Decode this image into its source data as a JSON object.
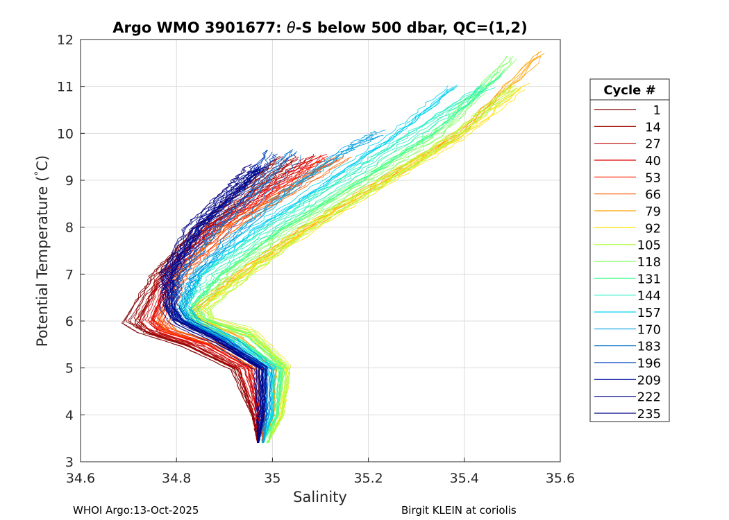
{
  "chart_data": {
    "type": "line",
    "title_prefix": "Argo WMO 3901677: ",
    "title_theta": "θ",
    "title_suffix": "-S below 500 dbar,  QC=(1,2)",
    "xlabel": "Salinity",
    "ylabel_text": "Potential Temperature (",
    "ylabel_degree": "°",
    "ylabel_unit": "C)",
    "xlim": [
      34.6,
      35.6
    ],
    "ylim": [
      3,
      12
    ],
    "xticks": [
      "34.6",
      "34.8",
      "35",
      "35.2",
      "35.4",
      "35.6"
    ],
    "yticks": [
      "3",
      "4",
      "5",
      "6",
      "7",
      "8",
      "9",
      "10",
      "11",
      "12"
    ],
    "grid": true,
    "legend_title": "Cycle #",
    "legend_placement": "right",
    "legend_entries": [
      "1",
      "14",
      "27",
      "40",
      "53",
      "66",
      "79",
      "92",
      "105",
      "118",
      "131",
      "144",
      "157",
      "170",
      "183",
      "196",
      "209",
      "222",
      "235"
    ],
    "legend_colors": [
      "#800000",
      "#a00000",
      "#c00000",
      "#e00000",
      "#ff2000",
      "#ff6000",
      "#ffa000",
      "#ffe000",
      "#b0ff40",
      "#80ff60",
      "#40ff90",
      "#20f0c0",
      "#00d0f0",
      "#00a0e0",
      "#0070d0",
      "#0040c0",
      "#0010a0",
      "#000890",
      "#000080"
    ],
    "series": [
      {
        "name": "1",
        "color": "#800000",
        "s": [
          34.97,
          34.96,
          34.92,
          34.82,
          34.73,
          34.7,
          34.76,
          34.85,
          34.94,
          35.02
        ],
        "t": [
          3.4,
          4.0,
          5.0,
          5.5,
          5.8,
          6.0,
          7.0,
          8.0,
          8.8,
          9.5
        ]
      },
      {
        "name": "14",
        "color": "#a00000",
        "s": [
          34.97,
          34.96,
          34.93,
          34.83,
          34.74,
          34.72,
          34.77,
          34.86,
          34.96,
          35.05
        ],
        "t": [
          3.4,
          4.0,
          5.0,
          5.5,
          5.8,
          6.0,
          7.0,
          8.0,
          8.8,
          9.5
        ]
      },
      {
        "name": "27",
        "color": "#c00000",
        "s": [
          34.97,
          34.97,
          34.94,
          34.85,
          34.76,
          34.74,
          34.78,
          34.87,
          34.98,
          35.08
        ],
        "t": [
          3.4,
          4.0,
          5.0,
          5.5,
          5.8,
          6.0,
          7.0,
          8.0,
          8.8,
          9.5
        ]
      },
      {
        "name": "40",
        "color": "#e00000",
        "s": [
          34.97,
          34.97,
          34.95,
          34.86,
          34.77,
          34.75,
          34.79,
          34.88,
          35.0,
          35.1
        ],
        "t": [
          3.4,
          4.0,
          5.0,
          5.5,
          5.8,
          6.0,
          7.0,
          8.0,
          8.8,
          9.5
        ]
      },
      {
        "name": "53",
        "color": "#ff2000",
        "s": [
          34.98,
          34.98,
          34.96,
          34.88,
          34.78,
          34.76,
          34.8,
          34.9,
          35.02,
          35.12
        ],
        "t": [
          3.4,
          4.0,
          5.0,
          5.5,
          5.8,
          6.0,
          7.0,
          8.0,
          8.8,
          9.5
        ]
      },
      {
        "name": "66",
        "color": "#ff6000",
        "s": [
          34.98,
          34.98,
          34.97,
          34.89,
          34.79,
          34.77,
          34.81,
          34.91,
          35.04,
          35.15
        ],
        "t": [
          3.4,
          4.0,
          5.0,
          5.5,
          5.8,
          6.0,
          7.0,
          8.0,
          8.8,
          9.5
        ]
      },
      {
        "name": "79",
        "color": "#ffa000",
        "s": [
          34.98,
          35.0,
          35.0,
          34.93,
          34.84,
          34.82,
          34.92,
          35.06,
          35.22,
          35.38,
          35.55
        ],
        "t": [
          3.4,
          4.0,
          5.0,
          5.6,
          6.0,
          6.2,
          7.0,
          8.0,
          9.0,
          10.0,
          11.7
        ]
      },
      {
        "name": "92",
        "color": "#ffe000",
        "s": [
          34.99,
          35.02,
          35.03,
          34.96,
          34.86,
          34.84,
          34.94,
          35.08,
          35.24,
          35.4,
          35.52
        ],
        "t": [
          3.4,
          4.0,
          5.0,
          5.7,
          6.0,
          6.2,
          7.0,
          8.0,
          9.0,
          10.0,
          11.0
        ]
      },
      {
        "name": "105",
        "color": "#b0ff40",
        "s": [
          34.99,
          35.02,
          35.03,
          34.95,
          34.87,
          34.86,
          34.94,
          35.07,
          35.23,
          35.38,
          35.5
        ],
        "t": [
          3.4,
          4.0,
          5.0,
          5.8,
          6.0,
          6.3,
          7.0,
          8.0,
          9.0,
          10.0,
          11.0
        ]
      },
      {
        "name": "118",
        "color": "#80ff60",
        "s": [
          34.99,
          35.01,
          35.02,
          34.95,
          34.86,
          34.84,
          34.91,
          35.04,
          35.2,
          35.35,
          35.5
        ],
        "t": [
          3.4,
          4.0,
          5.0,
          5.7,
          6.0,
          6.3,
          7.0,
          8.0,
          9.0,
          10.0,
          11.6
        ]
      },
      {
        "name": "131",
        "color": "#40ff90",
        "s": [
          34.98,
          35.01,
          35.02,
          34.94,
          34.85,
          34.83,
          34.89,
          35.02,
          35.18,
          35.33,
          35.48
        ],
        "t": [
          3.4,
          4.0,
          5.0,
          5.6,
          6.0,
          6.3,
          7.0,
          8.0,
          9.0,
          10.0,
          11.3
        ]
      },
      {
        "name": "144",
        "color": "#20f0c0",
        "s": [
          34.98,
          35.0,
          35.01,
          34.93,
          34.84,
          34.82,
          34.87,
          35.0,
          35.15,
          35.3,
          35.45
        ],
        "t": [
          3.4,
          4.0,
          5.0,
          5.6,
          6.0,
          6.3,
          7.0,
          8.0,
          9.0,
          10.0,
          11.0
        ]
      },
      {
        "name": "157",
        "color": "#00d0f0",
        "s": [
          34.98,
          35.0,
          35.0,
          34.92,
          34.84,
          34.82,
          34.85,
          34.97,
          35.12,
          35.26,
          35.38
        ],
        "t": [
          3.4,
          4.0,
          5.0,
          5.6,
          6.0,
          6.3,
          7.0,
          8.0,
          9.0,
          10.0,
          11.0
        ]
      },
      {
        "name": "170",
        "color": "#00a0e0",
        "s": [
          34.98,
          34.99,
          34.99,
          34.91,
          34.83,
          34.81,
          34.84,
          34.94,
          35.06,
          35.16,
          35.22
        ],
        "t": [
          3.4,
          4.0,
          5.0,
          5.6,
          6.0,
          6.3,
          7.0,
          8.0,
          9.0,
          9.7,
          10.0
        ]
      },
      {
        "name": "183",
        "color": "#0070d0",
        "s": [
          34.97,
          34.99,
          34.99,
          34.9,
          34.82,
          34.8,
          34.82,
          34.9,
          34.98,
          35.05
        ],
        "t": [
          3.4,
          4.0,
          5.0,
          5.6,
          6.0,
          6.3,
          7.0,
          8.0,
          8.8,
          9.6
        ]
      },
      {
        "name": "196",
        "color": "#0040c0",
        "s": [
          34.97,
          34.98,
          34.98,
          34.89,
          34.81,
          34.79,
          34.8,
          34.86,
          34.95,
          35.0
        ],
        "t": [
          3.4,
          4.0,
          5.0,
          5.6,
          6.0,
          6.3,
          7.0,
          8.0,
          8.8,
          9.6
        ]
      },
      {
        "name": "209",
        "color": "#0010a0",
        "s": [
          34.97,
          34.98,
          34.98,
          34.89,
          34.81,
          34.79,
          34.79,
          34.85,
          34.93,
          34.98
        ],
        "t": [
          3.4,
          4.0,
          5.0,
          5.6,
          6.0,
          6.3,
          7.0,
          8.0,
          8.8,
          9.3
        ]
      },
      {
        "name": "222",
        "color": "#000890",
        "s": [
          34.97,
          34.98,
          34.98,
          34.88,
          34.8,
          34.78,
          34.78,
          34.84,
          34.92,
          34.97
        ],
        "t": [
          3.4,
          4.0,
          5.0,
          5.6,
          6.0,
          6.3,
          7.0,
          8.0,
          8.8,
          9.3
        ]
      },
      {
        "name": "235",
        "color": "#000080",
        "s": [
          34.97,
          34.97,
          34.97,
          34.88,
          34.8,
          34.78,
          34.78,
          34.83,
          34.91,
          34.96
        ],
        "t": [
          3.4,
          4.0,
          5.0,
          5.6,
          6.0,
          6.3,
          7.0,
          8.0,
          8.8,
          9.3
        ]
      }
    ]
  },
  "footer": {
    "left": "WHOI Argo:13-Oct-2025",
    "right": "Birgit KLEIN at coriolis"
  }
}
